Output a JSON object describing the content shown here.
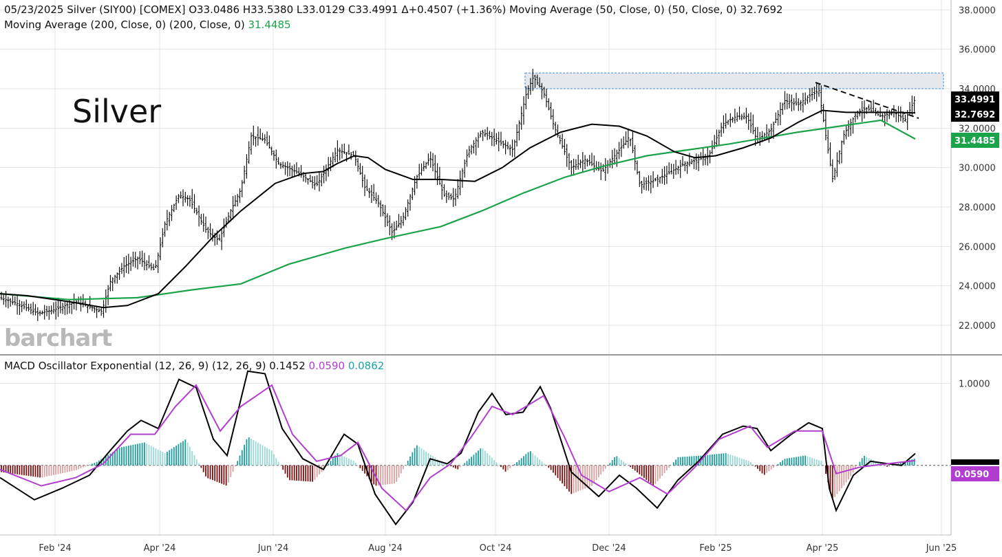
{
  "header": {
    "line1_main": "05/23/2025 Silver (SIY00) [COMEX] O33.0486 H33.5380 L33.0129 C33.4991 Δ+0.4507 (+1.36%) Moving Average (50, Close, 0)  (50, Close, 0) 32.7692",
    "line2_label": "Moving Average (200, Close, 0)  (200, Close, 0) ",
    "line2_value": "31.4485",
    "macd_label": "MACD Oscillator Exponential (12, 26, 9)  (12, 26, 9) 0.1452 ",
    "macd_signal": "0.0590",
    "macd_hist": " 0.0862"
  },
  "chart_label": "Silver",
  "watermark": "barchart",
  "colors": {
    "price": "#000000",
    "ma50": "#000000",
    "ma200": "#1aa34a",
    "macd": "#000000",
    "signal": "#b23ccf",
    "hist_up_strong": "#1a9c9c",
    "hist_up_weak": "#9ad8d6",
    "hist_down_strong": "#7a1010",
    "hist_down_weak": "#d8a0a0",
    "resistance_zone": "#e6e8ec",
    "resistance_border": "#3a8fd8",
    "grid": "#e3e3e3"
  },
  "chart_data": [
    {
      "type": "ohlc",
      "ylim": [
        20.5,
        38.5
      ],
      "y_ticks": [
        "22.0000",
        "24.0000",
        "26.0000",
        "28.0000",
        "30.0000",
        "32.0000",
        "34.0000",
        "36.0000",
        "38.0000"
      ],
      "x_ticks": [
        "Feb '24",
        "Apr '24",
        "Jun '24",
        "Aug '24",
        "Oct '24",
        "Dec '24",
        "Feb '25",
        "Apr '25",
        "Jun '25"
      ],
      "last_values": {
        "close": "33.4991",
        "ma50": "32.7692",
        "ma200": "31.4485"
      },
      "price_closes_approx": [
        [
          0,
          23.4
        ],
        [
          25,
          23.1
        ],
        [
          55,
          22.6
        ],
        [
          80,
          22.8
        ],
        [
          110,
          23.2
        ],
        [
          148,
          22.7
        ],
        [
          160,
          24.2
        ],
        [
          180,
          25.0
        ],
        [
          200,
          25.4
        ],
        [
          225,
          24.8
        ],
        [
          240,
          27.2
        ],
        [
          260,
          28.6
        ],
        [
          275,
          28.4
        ],
        [
          300,
          26.8
        ],
        [
          318,
          26.3
        ],
        [
          335,
          27.8
        ],
        [
          350,
          28.9
        ],
        [
          365,
          31.6
        ],
        [
          385,
          31.4
        ],
        [
          405,
          30.2
        ],
        [
          430,
          29.8
        ],
        [
          460,
          29.1
        ],
        [
          490,
          30.9
        ],
        [
          515,
          30.6
        ],
        [
          530,
          29.0
        ],
        [
          550,
          28.2
        ],
        [
          570,
          26.7
        ],
        [
          585,
          27.4
        ],
        [
          605,
          29.5
        ],
        [
          625,
          30.5
        ],
        [
          645,
          28.6
        ],
        [
          660,
          28.4
        ],
        [
          680,
          30.8
        ],
        [
          700,
          31.8
        ],
        [
          720,
          31.4
        ],
        [
          745,
          30.9
        ],
        [
          765,
          33.8
        ],
        [
          775,
          34.6
        ],
        [
          790,
          33.8
        ],
        [
          805,
          32.1
        ],
        [
          830,
          30.0
        ],
        [
          850,
          30.4
        ],
        [
          875,
          29.8
        ],
        [
          900,
          30.9
        ],
        [
          915,
          31.6
        ],
        [
          930,
          29.1
        ],
        [
          955,
          29.4
        ],
        [
          975,
          29.8
        ],
        [
          995,
          30.2
        ],
        [
          1015,
          30.4
        ],
        [
          1030,
          30.6
        ],
        [
          1050,
          32.2
        ],
        [
          1070,
          32.6
        ],
        [
          1085,
          32.6
        ],
        [
          1100,
          31.4
        ],
        [
          1120,
          31.9
        ],
        [
          1140,
          33.4
        ],
        [
          1160,
          33.2
        ],
        [
          1175,
          33.6
        ],
        [
          1190,
          33.9
        ],
        [
          1200,
          31.6
        ],
        [
          1210,
          29.4
        ],
        [
          1225,
          31.6
        ],
        [
          1245,
          32.8
        ],
        [
          1260,
          33.0
        ],
        [
          1280,
          32.6
        ],
        [
          1300,
          32.8
        ],
        [
          1315,
          32.4
        ],
        [
          1330,
          33.4991
        ]
      ],
      "ma50_approx": [
        [
          0,
          23.6
        ],
        [
          40,
          23.5
        ],
        [
          100,
          23.2
        ],
        [
          150,
          22.9
        ],
        [
          185,
          23.0
        ],
        [
          230,
          23.6
        ],
        [
          270,
          25.0
        ],
        [
          310,
          26.5
        ],
        [
          350,
          27.8
        ],
        [
          400,
          29.2
        ],
        [
          440,
          29.7
        ],
        [
          470,
          29.8
        ],
        [
          490,
          30.2
        ],
        [
          515,
          30.6
        ],
        [
          535,
          30.5
        ],
        [
          560,
          29.9
        ],
        [
          600,
          29.4
        ],
        [
          640,
          29.4
        ],
        [
          690,
          29.3
        ],
        [
          730,
          30.0
        ],
        [
          770,
          31.0
        ],
        [
          815,
          31.8
        ],
        [
          860,
          32.2
        ],
        [
          900,
          32.1
        ],
        [
          940,
          31.6
        ],
        [
          980,
          30.8
        ],
        [
          1010,
          30.5
        ],
        [
          1040,
          30.6
        ],
        [
          1080,
          31.0
        ],
        [
          1120,
          31.5
        ],
        [
          1160,
          32.3
        ],
        [
          1195,
          32.9
        ],
        [
          1230,
          32.8
        ],
        [
          1270,
          32.8
        ],
        [
          1300,
          32.8
        ],
        [
          1330,
          32.7692
        ]
      ],
      "ma200_approx": [
        [
          0,
          23.6
        ],
        [
          100,
          23.3
        ],
        [
          200,
          23.4
        ],
        [
          280,
          23.8
        ],
        [
          350,
          24.1
        ],
        [
          420,
          25.1
        ],
        [
          500,
          25.9
        ],
        [
          560,
          26.4
        ],
        [
          640,
          27.0
        ],
        [
          700,
          27.8
        ],
        [
          760,
          28.7
        ],
        [
          820,
          29.5
        ],
        [
          880,
          30.1
        ],
        [
          940,
          30.6
        ],
        [
          1000,
          30.9
        ],
        [
          1060,
          31.2
        ],
        [
          1110,
          31.5
        ],
        [
          1160,
          31.8
        ],
        [
          1220,
          32.1
        ],
        [
          1280,
          32.4
        ],
        [
          1330,
          31.4485
        ]
      ]
    },
    {
      "type": "macd",
      "ylim": [
        -0.85,
        1.35
      ],
      "y_ticks": [
        "1.0000"
      ],
      "last_values": {
        "macd": "0.1452",
        "signal": "0.0590",
        "hist": "0.0862"
      },
      "macd_approx": [
        [
          0,
          -0.15
        ],
        [
          50,
          -0.42
        ],
        [
          90,
          -0.28
        ],
        [
          130,
          -0.12
        ],
        [
          160,
          0.18
        ],
        [
          185,
          0.42
        ],
        [
          205,
          0.55
        ],
        [
          230,
          0.45
        ],
        [
          260,
          1.05
        ],
        [
          285,
          0.95
        ],
        [
          310,
          0.32
        ],
        [
          330,
          0.12
        ],
        [
          360,
          1.15
        ],
        [
          385,
          1.12
        ],
        [
          410,
          0.45
        ],
        [
          440,
          0.08
        ],
        [
          470,
          -0.05
        ],
        [
          500,
          0.38
        ],
        [
          520,
          0.26
        ],
        [
          545,
          -0.35
        ],
        [
          575,
          -0.72
        ],
        [
          600,
          -0.45
        ],
        [
          625,
          0.08
        ],
        [
          650,
          0.02
        ],
        [
          670,
          0.15
        ],
        [
          695,
          0.65
        ],
        [
          715,
          0.88
        ],
        [
          735,
          0.62
        ],
        [
          760,
          0.65
        ],
        [
          785,
          0.96
        ],
        [
          800,
          0.7
        ],
        [
          830,
          -0.08
        ],
        [
          870,
          -0.38
        ],
        [
          900,
          -0.12
        ],
        [
          925,
          -0.28
        ],
        [
          955,
          -0.52
        ],
        [
          985,
          -0.18
        ],
        [
          1015,
          0.05
        ],
        [
          1050,
          0.38
        ],
        [
          1080,
          0.48
        ],
        [
          1100,
          0.45
        ],
        [
          1120,
          0.18
        ],
        [
          1150,
          0.38
        ],
        [
          1175,
          0.52
        ],
        [
          1195,
          0.45
        ],
        [
          1205,
          -0.28
        ],
        [
          1215,
          -0.55
        ],
        [
          1240,
          -0.12
        ],
        [
          1265,
          0.05
        ],
        [
          1290,
          0.02
        ],
        [
          1310,
          0.0
        ],
        [
          1330,
          0.1452
        ]
      ],
      "signal_approx": [
        [
          0,
          -0.05
        ],
        [
          60,
          -0.25
        ],
        [
          110,
          -0.15
        ],
        [
          150,
          0.02
        ],
        [
          190,
          0.38
        ],
        [
          225,
          0.38
        ],
        [
          255,
          0.72
        ],
        [
          285,
          0.98
        ],
        [
          320,
          0.42
        ],
        [
          350,
          0.72
        ],
        [
          395,
          0.98
        ],
        [
          425,
          0.38
        ],
        [
          460,
          0.05
        ],
        [
          495,
          0.12
        ],
        [
          520,
          0.28
        ],
        [
          555,
          -0.28
        ],
        [
          590,
          -0.55
        ],
        [
          625,
          -0.15
        ],
        [
          655,
          0.02
        ],
        [
          685,
          0.35
        ],
        [
          715,
          0.72
        ],
        [
          745,
          0.62
        ],
        [
          790,
          0.85
        ],
        [
          820,
          0.35
        ],
        [
          845,
          -0.12
        ],
        [
          885,
          -0.32
        ],
        [
          930,
          -0.15
        ],
        [
          970,
          -0.35
        ],
        [
          1010,
          -0.02
        ],
        [
          1045,
          0.32
        ],
        [
          1090,
          0.48
        ],
        [
          1115,
          0.22
        ],
        [
          1155,
          0.42
        ],
        [
          1195,
          0.42
        ],
        [
          1215,
          -0.1
        ],
        [
          1250,
          -0.02
        ],
        [
          1290,
          0.02
        ],
        [
          1330,
          0.059
        ]
      ],
      "hist_approx": [
        [
          0,
          -0.08
        ],
        [
          60,
          -0.15
        ],
        [
          110,
          -0.06
        ],
        [
          140,
          0.04
        ],
        [
          175,
          0.22
        ],
        [
          210,
          0.28
        ],
        [
          240,
          0.15
        ],
        [
          270,
          0.32
        ],
        [
          300,
          -0.15
        ],
        [
          330,
          -0.25
        ],
        [
          360,
          0.35
        ],
        [
          395,
          0.18
        ],
        [
          420,
          -0.18
        ],
        [
          455,
          -0.2
        ],
        [
          490,
          0.15
        ],
        [
          515,
          0.05
        ],
        [
          545,
          -0.25
        ],
        [
          575,
          -0.22
        ],
        [
          605,
          0.25
        ],
        [
          640,
          0.05
        ],
        [
          665,
          -0.05
        ],
        [
          700,
          0.22
        ],
        [
          735,
          -0.08
        ],
        [
          770,
          0.18
        ],
        [
          800,
          -0.05
        ],
        [
          830,
          -0.35
        ],
        [
          860,
          -0.25
        ],
        [
          895,
          0.12
        ],
        [
          925,
          -0.08
        ],
        [
          950,
          -0.25
        ],
        [
          985,
          0.1
        ],
        [
          1020,
          0.12
        ],
        [
          1055,
          0.15
        ],
        [
          1090,
          0.05
        ],
        [
          1110,
          -0.12
        ],
        [
          1140,
          0.08
        ],
        [
          1170,
          0.12
        ],
        [
          1195,
          0.05
        ],
        [
          1210,
          -0.42
        ],
        [
          1235,
          -0.15
        ],
        [
          1255,
          0.12
        ],
        [
          1290,
          -0.02
        ],
        [
          1330,
          0.0862
        ]
      ]
    }
  ]
}
